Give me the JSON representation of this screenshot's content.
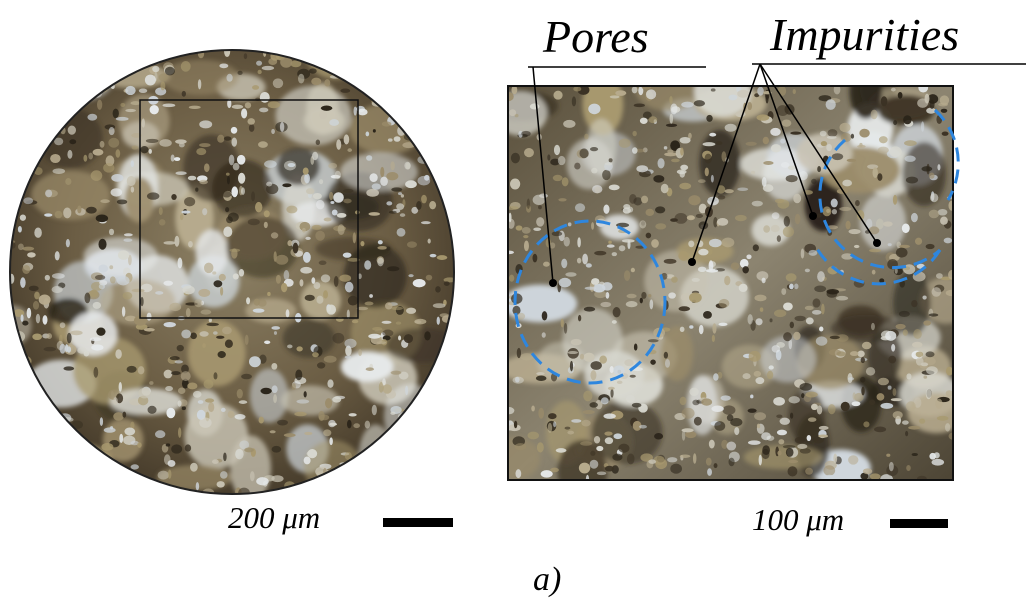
{
  "labels": {
    "pores": "Pores",
    "impurities": "Impurities"
  },
  "scale_bars": {
    "left": "200 μm",
    "right": "100 μm"
  },
  "caption": "a)"
}
